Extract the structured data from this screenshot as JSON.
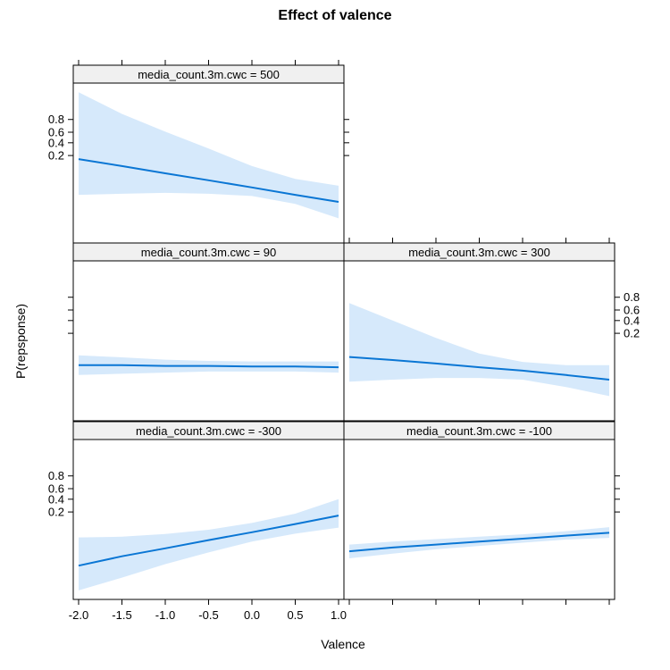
{
  "chart_data": {
    "type": "line",
    "title": "Effect of valence",
    "xlabel": "Valence",
    "ylabel": "P(repsponse)",
    "x_ticks": [
      -2.0,
      -1.5,
      -1.0,
      -0.5,
      0.0,
      0.5,
      1.0
    ],
    "x_tick_labels": [
      "-2.0",
      "-1.5",
      "-1.0",
      "-0.5",
      "0.0",
      "0.5",
      "1.0"
    ],
    "y_ticks": [
      0.2,
      0.4,
      0.6,
      0.8
    ],
    "y_tick_labels": [
      "0.2",
      "0.4",
      "0.6",
      "0.8"
    ],
    "xlim": [
      -2.0,
      1.0
    ],
    "y_scale": "logit",
    "panels": [
      {
        "strip": "media_count.3m.cwc = 500",
        "row": 0,
        "col": 0,
        "x": [
          -2.0,
          -1.5,
          -1.0,
          -0.5,
          0.0,
          0.5,
          1.0
        ],
        "fit": [
          0.16,
          0.1,
          0.06,
          0.036,
          0.021,
          0.012,
          0.007
        ],
        "lower": [
          0.012,
          0.013,
          0.014,
          0.013,
          0.011,
          0.006,
          0.002
        ],
        "upper": [
          0.97,
          0.86,
          0.61,
          0.3,
          0.1,
          0.04,
          0.024
        ]
      },
      {
        "strip": "media_count.3m.cwc = 90",
        "row": 1,
        "col": 0,
        "x": [
          -2.0,
          -1.5,
          -1.0,
          -0.5,
          0.0,
          0.5,
          1.0
        ],
        "fit": [
          0.021,
          0.021,
          0.02,
          0.02,
          0.019,
          0.019,
          0.018
        ],
        "lower": [
          0.01,
          0.011,
          0.012,
          0.013,
          0.013,
          0.013,
          0.012
        ],
        "upper": [
          0.044,
          0.038,
          0.032,
          0.029,
          0.028,
          0.028,
          0.028
        ]
      },
      {
        "strip": "media_count.3m.cwc = 300",
        "row": 1,
        "col": 1,
        "x": [
          -2.0,
          -1.5,
          -1.0,
          -0.5,
          0.0,
          0.5,
          1.0
        ],
        "fit": [
          0.039,
          0.031,
          0.024,
          0.018,
          0.014,
          0.01,
          0.007
        ],
        "lower": [
          0.006,
          0.007,
          0.008,
          0.008,
          0.007,
          0.004,
          0.002
        ],
        "upper": [
          0.72,
          0.4,
          0.15,
          0.05,
          0.027,
          0.021,
          0.021
        ]
      },
      {
        "strip": "media_count.3m.cwc = -300",
        "row": 2,
        "col": 0,
        "x": [
          -2.0,
          -1.5,
          -1.0,
          -0.5,
          0.0,
          0.5,
          1.0
        ],
        "fit": [
          0.004,
          0.0082,
          0.015,
          0.028,
          0.05,
          0.09,
          0.16
        ],
        "lower": [
          0.0006,
          0.0016,
          0.0045,
          0.011,
          0.025,
          0.045,
          0.07
        ],
        "upper": [
          0.034,
          0.036,
          0.044,
          0.06,
          0.097,
          0.18,
          0.4
        ]
      },
      {
        "strip": "media_count.3m.cwc = -100",
        "row": 2,
        "col": 1,
        "x": [
          -2.0,
          -1.5,
          -1.0,
          -0.5,
          0.0,
          0.5,
          1.0
        ],
        "fit": [
          0.012,
          0.016,
          0.02,
          0.025,
          0.031,
          0.039,
          0.048
        ],
        "lower": [
          0.007,
          0.01,
          0.014,
          0.018,
          0.023,
          0.029,
          0.033
        ],
        "upper": [
          0.02,
          0.025,
          0.03,
          0.036,
          0.043,
          0.054,
          0.072
        ]
      }
    ]
  }
}
